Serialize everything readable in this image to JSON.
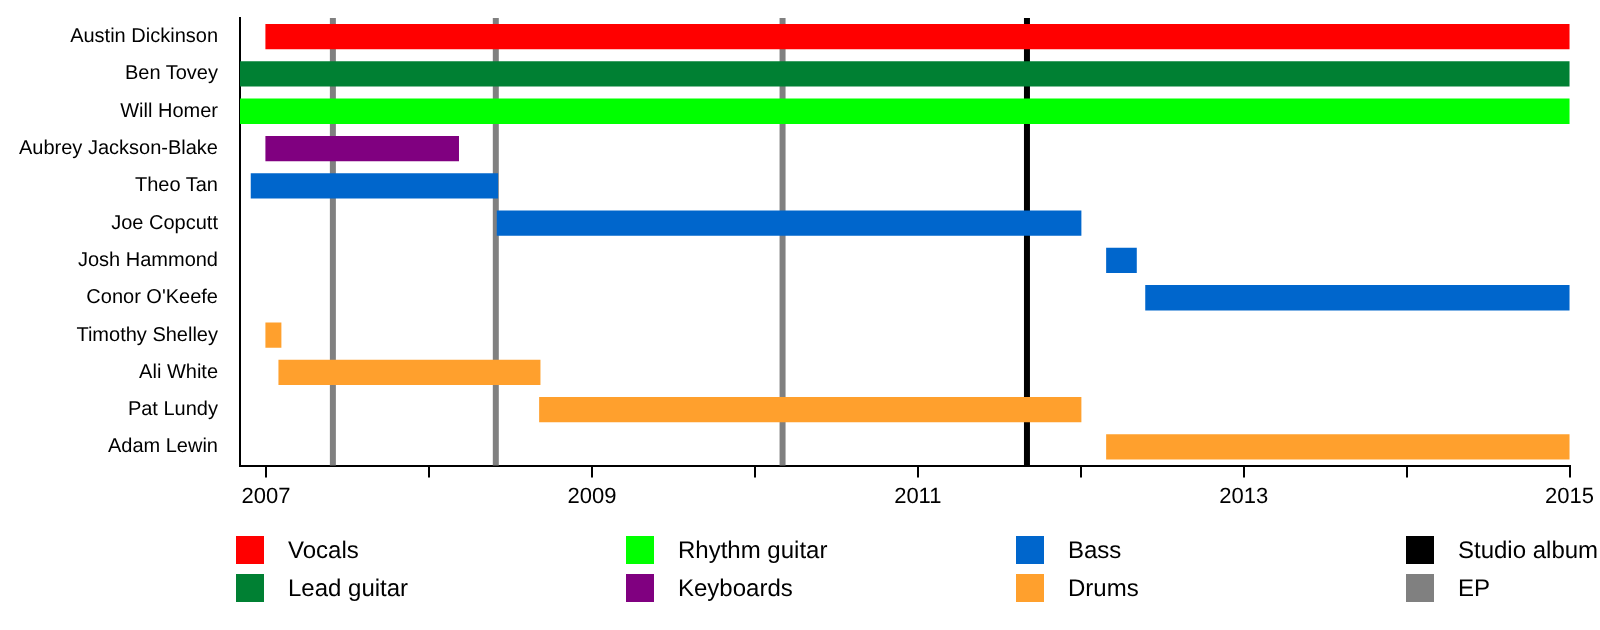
{
  "chart_data": {
    "type": "bar",
    "orientation": "horizontal",
    "categories": [
      "Austin Dickinson",
      "Ben Tovey",
      "Will Homer",
      "Aubrey Jackson-Blake",
      "Theo Tan",
      "Joe Copcutt",
      "Josh Hammond",
      "Conor O'Keefe",
      "Timothy Shelley",
      "Ali White",
      "Pat Lundy",
      "Adam Lewin"
    ],
    "series": [
      {
        "name": "Vocals",
        "color": "#ff0000",
        "base": [
          2007.0,
          null,
          null,
          null,
          null,
          null,
          null,
          null,
          null,
          null,
          null,
          null
        ],
        "values": [
          8.0,
          null,
          null,
          null,
          null,
          null,
          null,
          null,
          null,
          null,
          null,
          null
        ]
      },
      {
        "name": "Lead guitar",
        "color": "#008033",
        "base": [
          null,
          2006.84,
          null,
          null,
          null,
          null,
          null,
          null,
          null,
          null,
          null,
          null
        ],
        "values": [
          null,
          8.16,
          null,
          null,
          null,
          null,
          null,
          null,
          null,
          null,
          null,
          null
        ]
      },
      {
        "name": "Rhythm guitar",
        "color": "#00ff00",
        "base": [
          null,
          null,
          2006.84,
          null,
          null,
          null,
          null,
          null,
          null,
          null,
          null,
          null
        ],
        "values": [
          null,
          null,
          8.16,
          null,
          null,
          null,
          null,
          null,
          null,
          null,
          null,
          null
        ]
      },
      {
        "name": "Keyboards",
        "color": "#800080",
        "base": [
          null,
          null,
          null,
          2007.0,
          null,
          null,
          null,
          null,
          null,
          null,
          null,
          null
        ],
        "values": [
          null,
          null,
          null,
          1.18,
          null,
          null,
          null,
          null,
          null,
          null,
          null,
          null
        ]
      },
      {
        "name": "Bass",
        "color": "#0066cc",
        "base": [
          null,
          null,
          null,
          null,
          2006.91,
          2008.42,
          2012.16,
          2012.4,
          null,
          null,
          null,
          null
        ],
        "values": [
          null,
          null,
          null,
          null,
          1.51,
          3.58,
          0.18,
          2.6,
          null,
          null,
          null,
          null
        ]
      },
      {
        "name": "Drums",
        "color": "#ffa02d",
        "base": [
          null,
          null,
          null,
          null,
          null,
          null,
          null,
          null,
          2007.0,
          2007.08,
          2008.68,
          2012.16
        ],
        "values": [
          null,
          null,
          null,
          null,
          null,
          null,
          null,
          null,
          0.09,
          1.6,
          3.32,
          2.84
        ]
      }
    ],
    "ref_lines": [
      {
        "axis": "x",
        "value": 2011.67,
        "label": "Studio album",
        "color": "#000000"
      },
      {
        "axis": "x",
        "value": 2007.41,
        "label": "EP",
        "color": "#808080"
      },
      {
        "axis": "x",
        "value": 2008.41,
        "color": "#808080"
      },
      {
        "axis": "x",
        "value": 2010.17,
        "color": "#808080"
      }
    ],
    "xlim": [
      2006.84,
      2015
    ],
    "xticks": [
      2007,
      {
        "value": 2008,
        "label": null
      },
      2009,
      {
        "value": 2010,
        "label": null
      },
      2011,
      {
        "value": 2012,
        "label": null
      },
      2013,
      {
        "value": 2014,
        "label": null
      },
      2015
    ],
    "legend": "bottom",
    "grid": false
  }
}
